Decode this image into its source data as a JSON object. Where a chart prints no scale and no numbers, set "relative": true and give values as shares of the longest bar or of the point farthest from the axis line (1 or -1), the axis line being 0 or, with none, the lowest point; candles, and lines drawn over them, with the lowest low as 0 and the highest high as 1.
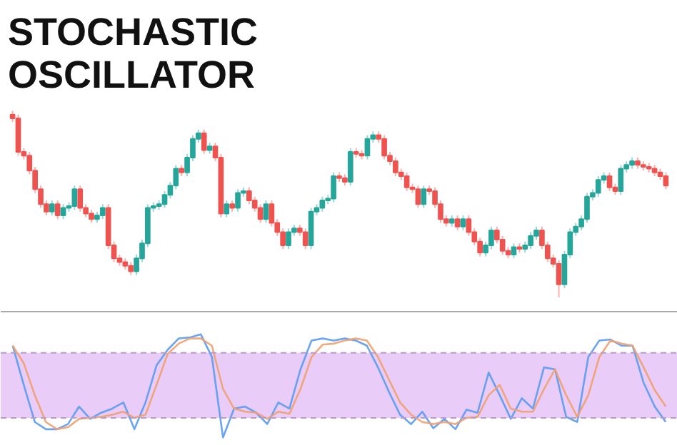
{
  "chart_data": [
    {
      "type": "candlestick",
      "title": "STOCHASTIC OSCILLATOR",
      "relative": true,
      "tick_labels": false,
      "grid": false,
      "categories": [
        null,
        null,
        null,
        null,
        null,
        null,
        null,
        null,
        null,
        null,
        null,
        null,
        null,
        null,
        null,
        null,
        null,
        null,
        null,
        null,
        null,
        null,
        null,
        null,
        null,
        null,
        null,
        null,
        null,
        null,
        null,
        null,
        null,
        null,
        null,
        null,
        null,
        null,
        null,
        null,
        null,
        null,
        null,
        null,
        null,
        null,
        null,
        null,
        null,
        null,
        null,
        null,
        null,
        null,
        null,
        null,
        null,
        null,
        null,
        null,
        null,
        null,
        null,
        null,
        null,
        null,
        null,
        null,
        null,
        null,
        null,
        null,
        null,
        null,
        null,
        null,
        null,
        null,
        null,
        null,
        null,
        null,
        null,
        null,
        null,
        null,
        null,
        null,
        null,
        null,
        null,
        null,
        null,
        null,
        null,
        null,
        null,
        null,
        null,
        null,
        null,
        null,
        null,
        null,
        null,
        null,
        null,
        null,
        null,
        null,
        null,
        null,
        null,
        null,
        null,
        null,
        null
      ],
      "ohlc": [
        [
          0.98,
          1.0,
          0.94,
          0.96
        ],
        [
          0.96,
          0.98,
          0.76,
          0.78
        ],
        [
          0.78,
          0.8,
          0.74,
          0.76
        ],
        [
          0.76,
          0.78,
          0.66,
          0.68
        ],
        [
          0.68,
          0.7,
          0.56,
          0.58
        ],
        [
          0.58,
          0.6,
          0.48,
          0.5
        ],
        [
          0.5,
          0.52,
          0.44,
          0.46
        ],
        [
          0.46,
          0.52,
          0.44,
          0.5
        ],
        [
          0.5,
          0.52,
          0.42,
          0.44
        ],
        [
          0.44,
          0.5,
          0.42,
          0.48
        ],
        [
          0.48,
          0.51,
          0.46,
          0.49
        ],
        [
          0.49,
          0.6,
          0.47,
          0.58
        ],
        [
          0.58,
          0.6,
          0.46,
          0.48
        ],
        [
          0.48,
          0.5,
          0.43,
          0.45
        ],
        [
          0.45,
          0.47,
          0.4,
          0.42
        ],
        [
          0.42,
          0.46,
          0.4,
          0.44
        ],
        [
          0.44,
          0.5,
          0.42,
          0.48
        ],
        [
          0.48,
          0.5,
          0.26,
          0.28
        ],
        [
          0.28,
          0.3,
          0.19,
          0.21
        ],
        [
          0.21,
          0.23,
          0.17,
          0.19
        ],
        [
          0.19,
          0.21,
          0.15,
          0.17
        ],
        [
          0.17,
          0.19,
          0.12,
          0.14
        ],
        [
          0.14,
          0.23,
          0.12,
          0.21
        ],
        [
          0.21,
          0.31,
          0.19,
          0.29
        ],
        [
          0.29,
          0.5,
          0.27,
          0.48
        ],
        [
          0.48,
          0.51,
          0.46,
          0.49
        ],
        [
          0.49,
          0.52,
          0.47,
          0.5
        ],
        [
          0.5,
          0.57,
          0.48,
          0.55
        ],
        [
          0.55,
          0.62,
          0.53,
          0.6
        ],
        [
          0.6,
          0.71,
          0.58,
          0.69
        ],
        [
          0.69,
          0.71,
          0.65,
          0.67
        ],
        [
          0.67,
          0.77,
          0.65,
          0.75
        ],
        [
          0.75,
          0.87,
          0.73,
          0.85
        ],
        [
          0.85,
          0.9,
          0.83,
          0.88
        ],
        [
          0.88,
          0.9,
          0.77,
          0.79
        ],
        [
          0.79,
          0.83,
          0.77,
          0.81
        ],
        [
          0.81,
          0.83,
          0.73,
          0.75
        ],
        [
          0.75,
          0.77,
          0.43,
          0.45
        ],
        [
          0.45,
          0.52,
          0.43,
          0.5
        ],
        [
          0.5,
          0.52,
          0.46,
          0.48
        ],
        [
          0.48,
          0.58,
          0.46,
          0.56
        ],
        [
          0.56,
          0.59,
          0.54,
          0.57
        ],
        [
          0.57,
          0.59,
          0.5,
          0.52
        ],
        [
          0.52,
          0.54,
          0.46,
          0.48
        ],
        [
          0.48,
          0.5,
          0.4,
          0.42
        ],
        [
          0.42,
          0.52,
          0.4,
          0.5
        ],
        [
          0.5,
          0.52,
          0.38,
          0.4
        ],
        [
          0.4,
          0.42,
          0.33,
          0.35
        ],
        [
          0.35,
          0.37,
          0.26,
          0.28
        ],
        [
          0.28,
          0.37,
          0.26,
          0.35
        ],
        [
          0.35,
          0.39,
          0.33,
          0.37
        ],
        [
          0.37,
          0.39,
          0.33,
          0.35
        ],
        [
          0.35,
          0.37,
          0.26,
          0.28
        ],
        [
          0.28,
          0.48,
          0.26,
          0.46
        ],
        [
          0.46,
          0.5,
          0.44,
          0.48
        ],
        [
          0.48,
          0.54,
          0.46,
          0.52
        ],
        [
          0.52,
          0.55,
          0.5,
          0.53
        ],
        [
          0.53,
          0.67,
          0.51,
          0.65
        ],
        [
          0.65,
          0.67,
          0.62,
          0.64
        ],
        [
          0.64,
          0.66,
          0.6,
          0.62
        ],
        [
          0.62,
          0.8,
          0.6,
          0.78
        ],
        [
          0.78,
          0.8,
          0.75,
          0.77
        ],
        [
          0.77,
          0.79,
          0.74,
          0.76
        ],
        [
          0.76,
          0.87,
          0.74,
          0.85
        ],
        [
          0.85,
          0.89,
          0.83,
          0.87
        ],
        [
          0.87,
          0.89,
          0.83,
          0.85
        ],
        [
          0.85,
          0.87,
          0.74,
          0.76
        ],
        [
          0.76,
          0.78,
          0.71,
          0.73
        ],
        [
          0.73,
          0.75,
          0.65,
          0.67
        ],
        [
          0.67,
          0.69,
          0.63,
          0.65
        ],
        [
          0.65,
          0.67,
          0.57,
          0.59
        ],
        [
          0.59,
          0.61,
          0.56,
          0.58
        ],
        [
          0.58,
          0.6,
          0.48,
          0.5
        ],
        [
          0.5,
          0.6,
          0.48,
          0.58
        ],
        [
          0.58,
          0.6,
          0.55,
          0.57
        ],
        [
          0.57,
          0.59,
          0.48,
          0.5
        ],
        [
          0.5,
          0.52,
          0.4,
          0.42
        ],
        [
          0.42,
          0.44,
          0.38,
          0.4
        ],
        [
          0.4,
          0.44,
          0.38,
          0.42
        ],
        [
          0.42,
          0.44,
          0.36,
          0.38
        ],
        [
          0.38,
          0.44,
          0.36,
          0.42
        ],
        [
          0.42,
          0.44,
          0.33,
          0.35
        ],
        [
          0.35,
          0.37,
          0.28,
          0.3
        ],
        [
          0.3,
          0.32,
          0.22,
          0.24
        ],
        [
          0.24,
          0.3,
          0.22,
          0.28
        ],
        [
          0.28,
          0.38,
          0.26,
          0.36
        ],
        [
          0.36,
          0.38,
          0.29,
          0.31
        ],
        [
          0.31,
          0.33,
          0.23,
          0.25
        ],
        [
          0.25,
          0.27,
          0.21,
          0.23
        ],
        [
          0.23,
          0.29,
          0.21,
          0.27
        ],
        [
          0.27,
          0.29,
          0.24,
          0.26
        ],
        [
          0.26,
          0.3,
          0.24,
          0.28
        ],
        [
          0.28,
          0.35,
          0.26,
          0.33
        ],
        [
          0.33,
          0.38,
          0.31,
          0.36
        ],
        [
          0.36,
          0.38,
          0.26,
          0.28
        ],
        [
          0.28,
          0.3,
          0.19,
          0.21
        ],
        [
          0.21,
          0.23,
          0.16,
          0.18
        ],
        [
          0.18,
          0.2,
          0.0,
          0.07
        ],
        [
          0.07,
          0.25,
          0.05,
          0.23
        ],
        [
          0.23,
          0.37,
          0.21,
          0.35
        ],
        [
          0.35,
          0.4,
          0.33,
          0.38
        ],
        [
          0.38,
          0.44,
          0.36,
          0.42
        ],
        [
          0.42,
          0.56,
          0.4,
          0.54
        ],
        [
          0.54,
          0.58,
          0.52,
          0.56
        ],
        [
          0.56,
          0.65,
          0.54,
          0.63
        ],
        [
          0.63,
          0.67,
          0.61,
          0.65
        ],
        [
          0.65,
          0.67,
          0.57,
          0.59
        ],
        [
          0.59,
          0.61,
          0.55,
          0.57
        ],
        [
          0.57,
          0.71,
          0.55,
          0.69
        ],
        [
          0.69,
          0.73,
          0.67,
          0.71
        ],
        [
          0.71,
          0.75,
          0.69,
          0.73
        ],
        [
          0.73,
          0.75,
          0.69,
          0.71
        ],
        [
          0.71,
          0.73,
          0.68,
          0.7
        ],
        [
          0.7,
          0.72,
          0.67,
          0.69
        ],
        [
          0.69,
          0.71,
          0.65,
          0.67
        ],
        [
          0.67,
          0.69,
          0.63,
          0.65
        ],
        [
          0.65,
          0.67,
          0.58,
          0.6
        ]
      ]
    },
    {
      "type": "line",
      "relative": true,
      "tick_labels": false,
      "grid": false,
      "categories": [
        null,
        null,
        null,
        null,
        null,
        null,
        null,
        null,
        null,
        null,
        null,
        null,
        null,
        null,
        null,
        null,
        null,
        null,
        null,
        null,
        null,
        null,
        null,
        null,
        null,
        null,
        null,
        null,
        null,
        null,
        null,
        null,
        null,
        null,
        null,
        null,
        null,
        null,
        null,
        null,
        null,
        null,
        null,
        null,
        null,
        null,
        null,
        null,
        null,
        null,
        null,
        null,
        null,
        null,
        null,
        null,
        null,
        null,
        null,
        null
      ],
      "series": [
        {
          "color": "#5b9bf0",
          "values": [
            0.89,
            0.51,
            0.15,
            0.08,
            0.08,
            0.13,
            0.3,
            0.18,
            0.24,
            0.28,
            0.34,
            0.08,
            0.34,
            0.7,
            0.85,
            0.96,
            0.97,
            1.0,
            0.78,
            0,
            0.28,
            0.3,
            0.24,
            0.13,
            0.34,
            0.28,
            0.66,
            0.94,
            0.96,
            0.94,
            0.96,
            0.94,
            0.89,
            0.68,
            0.44,
            0.22,
            0.13,
            0.25,
            0.09,
            0.18,
            0.08,
            0.27,
            0.24,
            0.63,
            0.41,
            0.18,
            0.38,
            0.28,
            0.68,
            0.66,
            0.2,
            0.15,
            0.78,
            0.94,
            0.95,
            0.89,
            0.89,
            0.53,
            0.3,
            0.15
          ]
        },
        {
          "color": "#f0a070",
          "values": [
            0.89,
            0.72,
            0.41,
            0.15,
            0.08,
            0.1,
            0.18,
            0.19,
            0.2,
            0.22,
            0.25,
            0.19,
            0.22,
            0.51,
            0.81,
            0.91,
            0.96,
            0.96,
            0.89,
            0.47,
            0.28,
            0.25,
            0.24,
            0.18,
            0.25,
            0.23,
            0.47,
            0.78,
            0.9,
            0.91,
            0.94,
            0.96,
            0.94,
            0.78,
            0.56,
            0.34,
            0.22,
            0.15,
            0.13,
            0.15,
            0.13,
            0.19,
            0.2,
            0.41,
            0.51,
            0.28,
            0.25,
            0.25,
            0.47,
            0.66,
            0.41,
            0.2,
            0.41,
            0.78,
            0.94,
            0.91,
            0.89,
            0.68,
            0.46,
            0.3
          ]
        }
      ],
      "bands": [
        {
          "axis": "y",
          "from": 0.19,
          "to": 0.82,
          "color": "#e9cdf8"
        }
      ],
      "ref_lines": [
        {
          "axis": "y",
          "value": 0.19,
          "color": "#b99ac8",
          "line_style": "dashed"
        },
        {
          "axis": "y",
          "value": 0.82,
          "color": "#b99ac8",
          "line_style": "dashed"
        }
      ]
    }
  ]
}
